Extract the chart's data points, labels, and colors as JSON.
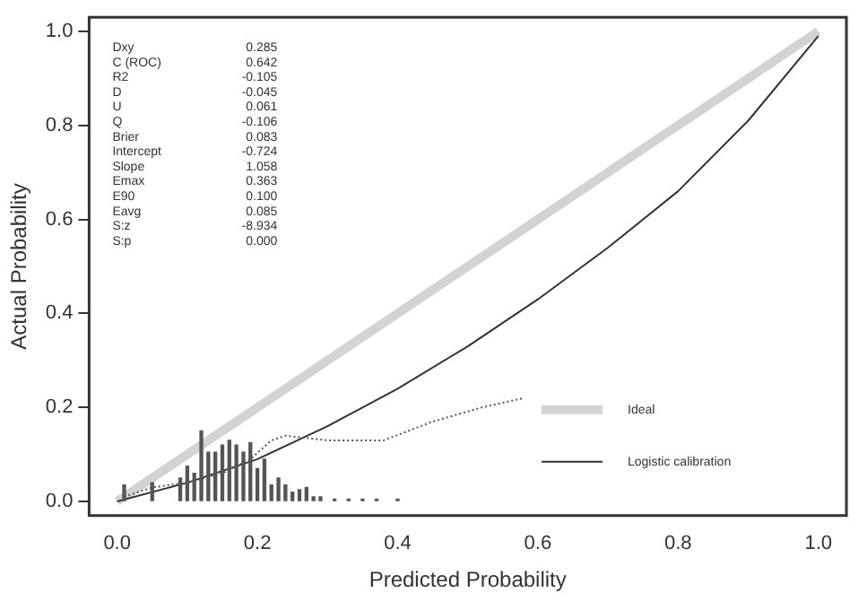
{
  "chart_data": {
    "type": "line",
    "xlabel": "Predicted Probability",
    "ylabel": "Actual Probability",
    "xlim": [
      -0.04,
      1.04
    ],
    "ylim": [
      -0.03,
      1.03
    ],
    "xticks": [
      {
        "value": 0,
        "label": "0.0"
      },
      0.2,
      0.4,
      0.6,
      0.8,
      {
        "value": 1,
        "label": "1.0"
      }
    ],
    "yticks": [
      {
        "value": 0,
        "label": "0.0"
      },
      0.2,
      0.4,
      0.6,
      0.8,
      {
        "value": 1,
        "label": "1.0"
      }
    ],
    "grid": false,
    "marker": "none",
    "legend": "bottom right",
    "series": [
      {
        "name": "Ideal",
        "color": "#d3d3d3",
        "x": [
          0,
          1
        ],
        "values": [
          0,
          1
        ]
      },
      {
        "name": "Logistic calibration",
        "color": "#333333",
        "x": [
          0,
          0.1,
          0.2,
          0.3,
          0.4,
          0.5,
          0.6,
          0.7,
          0.8,
          0.9,
          1
        ],
        "values": [
          0,
          0.04,
          0.09,
          0.16,
          0.24,
          0.33,
          0.43,
          0.54,
          0.66,
          0.81,
          0.99
        ]
      },
      {
        "line_style": "dotted",
        "color": "#555555",
        "x": [
          0.01,
          0.05,
          0.1,
          0.15,
          0.19,
          0.22,
          0.24,
          0.3,
          0.38,
          0.45,
          0.52,
          0.58
        ],
        "values": [
          0.01,
          0.03,
          0.04,
          0.06,
          0.09,
          0.13,
          0.14,
          0.13,
          0.13,
          0.17,
          0.2,
          0.22
        ]
      },
      {
        "type": "bar",
        "color": "#555555",
        "x": [
          0.01,
          0.05,
          0.09,
          0.1,
          0.11,
          0.12,
          0.13,
          0.14,
          0.15,
          0.16,
          0.17,
          0.18,
          0.19,
          0.2,
          0.21,
          0.22,
          0.23,
          0.24,
          0.25,
          0.26,
          0.27,
          0.28,
          0.29,
          0.31,
          0.33,
          0.35,
          0.37,
          0.4
        ],
        "values": [
          0.035,
          0.04,
          0.05,
          0.075,
          0.06,
          0.15,
          0.105,
          0.105,
          0.12,
          0.13,
          0.12,
          0.105,
          0.125,
          0.07,
          0.09,
          0.035,
          0.05,
          0.035,
          0.02,
          0.025,
          0.03,
          0.01,
          0.01,
          0.005,
          0.005,
          0.005,
          0.005,
          0.005
        ]
      }
    ],
    "annotations": [
      "Dxy 0.285",
      "C (ROC) 0.642",
      "R2 -0.105",
      "D -0.045",
      "U 0.061",
      "Q -0.106",
      "Brier 0.083",
      "Intercept -0.724",
      "Slope 1.058",
      "Emax 0.363",
      "E90 0.100",
      "Eavg 0.085",
      "S:z -8.934",
      "S:p 0.000"
    ]
  }
}
